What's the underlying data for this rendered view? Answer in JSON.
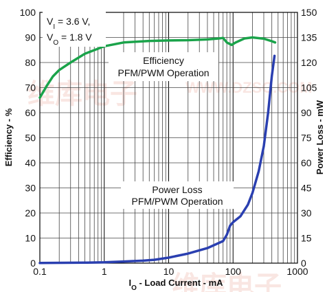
{
  "chart_data": {
    "type": "line",
    "x_scale": "log",
    "xlim": [
      0.1,
      1000
    ],
    "ylim_left": [
      0,
      100
    ],
    "ylim_right": [
      0,
      150
    ],
    "grid": true,
    "xlabel": {
      "main": "I",
      "sub": "O",
      "rest": " - Load Current - mA"
    },
    "ylabel_left": "Efficiency - %",
    "ylabel_right": "Power Loss - mW",
    "x_ticks": [
      {
        "value": 0.1,
        "label": "0.1"
      },
      {
        "value": 1,
        "label": "1"
      },
      {
        "value": 10,
        "label": "10"
      },
      {
        "value": 100,
        "label": "100"
      },
      {
        "value": 1000,
        "label": "1000"
      }
    ],
    "y_ticks_left": [
      "0",
      "10",
      "20",
      "30",
      "40",
      "50",
      "60",
      "70",
      "80",
      "90",
      "100"
    ],
    "y_ticks_right": [
      "0",
      "15",
      "30",
      "45",
      "60",
      "75",
      "90",
      "105",
      "120",
      "135",
      "150"
    ],
    "conditions": {
      "line1": {
        "pre": "V",
        "sub": "I",
        "post": " = 3.6 V,"
      },
      "line2": {
        "pre": "V",
        "sub": "O",
        "post": " = 1.8 V"
      }
    },
    "series": [
      {
        "name": "Efficiency",
        "label_lines": [
          "Efficiency",
          "PFM/PWM Operation"
        ],
        "axis": "left",
        "color": "#1aa34a",
        "points": [
          [
            0.1,
            66
          ],
          [
            0.13,
            71
          ],
          [
            0.16,
            74.5
          ],
          [
            0.2,
            77
          ],
          [
            0.3,
            80
          ],
          [
            0.5,
            83.5
          ],
          [
            0.8,
            85.5
          ],
          [
            1,
            86.5
          ],
          [
            2,
            88
          ],
          [
            5,
            88.6
          ],
          [
            10,
            88.8
          ],
          [
            20,
            88.9
          ],
          [
            40,
            89.2
          ],
          [
            60,
            89.6
          ],
          [
            70,
            89.8
          ],
          [
            80,
            88
          ],
          [
            95,
            87
          ],
          [
            110,
            88
          ],
          [
            150,
            89.6
          ],
          [
            200,
            90
          ],
          [
            300,
            89.5
          ],
          [
            400,
            88.5
          ],
          [
            450,
            88
          ]
        ]
      },
      {
        "name": "Power Loss",
        "label_lines": [
          "Power Loss",
          "PFM/PWM Operation"
        ],
        "axis": "right",
        "color": "#2a3fb0",
        "points": [
          [
            0.1,
            0.1
          ],
          [
            0.5,
            0.3
          ],
          [
            1,
            0.5
          ],
          [
            2,
            1
          ],
          [
            4,
            1.5
          ],
          [
            6,
            2
          ],
          [
            10,
            3.3
          ],
          [
            20,
            5.7
          ],
          [
            40,
            9
          ],
          [
            70,
            13.2
          ],
          [
            80,
            17
          ],
          [
            90,
            22.5
          ],
          [
            100,
            24.5
          ],
          [
            130,
            28
          ],
          [
            170,
            35
          ],
          [
            200,
            42
          ],
          [
            250,
            55
          ],
          [
            300,
            70
          ],
          [
            350,
            90
          ],
          [
            400,
            112
          ],
          [
            440,
            124
          ]
        ]
      }
    ]
  },
  "watermark": {
    "text_1": "WWW.DZSC.COM",
    "text_2": "维库电子"
  }
}
